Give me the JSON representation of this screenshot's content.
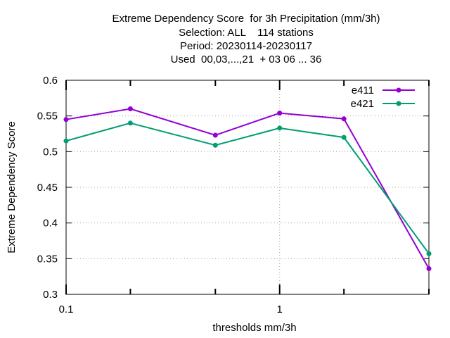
{
  "chart_data": {
    "type": "line",
    "title_lines": [
      "Extreme Dependency Score  for 3h Precipitation (mm/3h)",
      "Selection: ALL    114 stations",
      "Period: 20230114-20230117",
      "Used  00,03,...,21  + 03 06 ... 36"
    ],
    "xlabel": "thresholds mm/3h",
    "ylabel": "Extreme Dependency Score",
    "x_scale": "log",
    "xlim": [
      0.1,
      5
    ],
    "ylim": [
      0.3,
      0.6
    ],
    "x_tick_labels": [
      "0.1",
      "1"
    ],
    "x_ticks": [
      0.1,
      0.2,
      0.5,
      1,
      2,
      5
    ],
    "y_ticks": [
      "0.3",
      "0.35",
      "0.4",
      "0.45",
      "0.5",
      "0.55",
      "0.6"
    ],
    "grid": true,
    "legend_position": "top-right",
    "x": [
      0.1,
      0.2,
      0.5,
      1,
      2,
      5
    ],
    "series": [
      {
        "name": "e411",
        "color": "#9400d3",
        "values": [
          0.545,
          0.56,
          0.523,
          0.554,
          0.546,
          0.336
        ]
      },
      {
        "name": "e421",
        "color": "#009e73",
        "values": [
          0.515,
          0.54,
          0.509,
          0.533,
          0.52,
          0.357
        ]
      }
    ]
  }
}
